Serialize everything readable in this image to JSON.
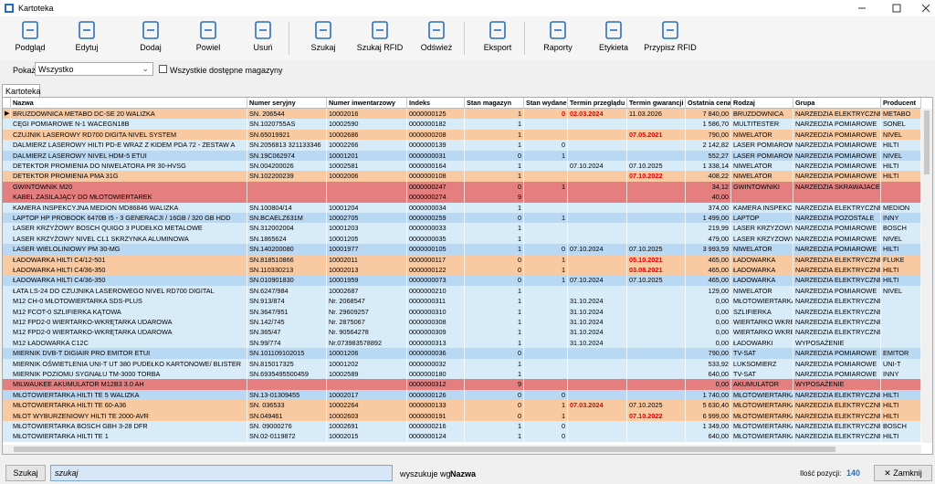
{
  "window_title": "Kartoteka",
  "toolbar": [
    "Podgląd",
    "Edytuj",
    "Dodaj",
    "Powiel",
    "Usuń",
    "Szukaj",
    "Szukaj RFID",
    "Odśwież",
    "Eksport",
    "Raporty",
    "Etykieta",
    "Przypisz RFID"
  ],
  "filter": {
    "label": "Pokaż",
    "value": "Wszystko",
    "checkbox": "Wszystkie dostępne magazyny"
  },
  "tab": "Kartoteka",
  "table": {
    "alert_color": "#e00000",
    "headers": [
      "Nazwa",
      "Numer seryjny",
      "Numer inwentarzowy",
      "Indeks",
      "Stan magazyn",
      "Stan wydane",
      "Termin przeglądu",
      "Termin gwarancji",
      "Ostatnia cena",
      "Rodzaj",
      "Grupa",
      "Producent"
    ],
    "rows": [
      {
        "color": "#f9c9a2",
        "alert": [
          5,
          6
        ],
        "cells": [
          "BRUZDOWNICA METABO DC-SE 20 WALIZKA",
          "SN. 206544",
          "10002016",
          "0000000125",
          1,
          0,
          "02.03.2024",
          "11.03.2026",
          "7 840,00",
          "BRUZDOWNICA",
          "NARZEDZIA ELEKTRYCZNE",
          "METABO"
        ]
      },
      {
        "color": "#d8ebf9",
        "alert": [],
        "cells": [
          "CĘGI POMIAROWE N-1 WACEGN18B",
          "SN.1020755AS",
          "10002590",
          "0000000182",
          1,
          null,
          null,
          null,
          "1 586,70",
          "MULTITESTER",
          "NARZEDZIA POMIAROWE",
          "SONEL"
        ]
      },
      {
        "color": "#f9c9a2",
        "alert": [
          7
        ],
        "cells": [
          "CZUJNIK LASEROWY RD700 DIGITA NIVEL SYSTEM",
          "SN.65019921",
          "10002686",
          "0000000208",
          1,
          null,
          null,
          "07.05.2021",
          "790,00",
          "NIWELATOR",
          "NARZEDZIA POMIAROWE",
          "NIVEL"
        ]
      },
      {
        "color": "#d8ebf9",
        "alert": [],
        "cells": [
          "DALMIERZ LASEROWY HILTI PD-E WRAZ Z KIDEM PDA 72 - ZESTAW A",
          "SN.2056813 321133346",
          "10002266",
          "0000000139",
          1,
          0,
          null,
          null,
          "2 142,82",
          "LASER POMIAROWY",
          "NARZEDZIA POMIAROWE",
          "HILTI"
        ]
      },
      {
        "color": "#b9d8f4",
        "alert": [],
        "cells": [
          "DALMIERZ LASEROWY NIVEL HDM-5 ETUI",
          "SN.19C062974",
          "10001201",
          "0000000031",
          0,
          1,
          null,
          null,
          "552,27",
          "LASER POMIAROWY",
          "NARZEDZIA POMIAROWE",
          "NIVEL"
        ]
      },
      {
        "color": "#d8ebf9",
        "alert": [],
        "cells": [
          "DETEKTOR PROMIENIA DO NIWELATORA PR 30-HVSG",
          "SN.004200026",
          "10002581",
          "0000000164",
          1,
          null,
          "07.10.2024",
          "07.10.2025",
          "1 338,14",
          "NIWELATOR",
          "NARZEDZIA POMIAROWE",
          "HILTI"
        ]
      },
      {
        "color": "#f9c9a2",
        "alert": [
          7
        ],
        "cells": [
          "DETEKTOR PROMIENIA PMA 31G",
          "SN.102200239",
          "10002006",
          "0000000108",
          1,
          null,
          null,
          "07.10.2022",
          "408,22",
          "NIWELATOR",
          "NARZEDZIA POMIAROWE",
          "HILTI"
        ]
      },
      {
        "color": "#e57f7f",
        "alert": [],
        "cells": [
          "GWINTOWNIK M20",
          null,
          null,
          "0000000247",
          0,
          1,
          null,
          null,
          "34,12",
          "GWINTOWNIKI",
          "NARZEDZIA SKRAWAJACE",
          null
        ]
      },
      {
        "color": "#e57f7f",
        "alert": [],
        "cells": [
          "KABEL ZASILAJĄCY DO MŁOTOWIERTAREK",
          null,
          null,
          "0000000274",
          9,
          null,
          null,
          null,
          "40,00",
          null,
          null,
          null
        ]
      },
      {
        "color": "#d8ebf9",
        "alert": [],
        "cells": [
          "KAMERA INSPEKCYJNA MEDION MD86846 WALIZKA",
          "SN.100804/14",
          "10001204",
          "0000000034",
          1,
          null,
          null,
          null,
          "374,00",
          "KAMERA INSPEKCYJ",
          "NARZEDZIA ELEKTRYCZNE",
          "MEDION"
        ]
      },
      {
        "color": "#b9d8f4",
        "alert": [],
        "cells": [
          "LAPTOP HP PROBOOK 6470B I5 - 3 GENERACJI / 16GB / 320 GB HDD",
          "SN.BCAELZ631M",
          "10002705",
          "0000000259",
          0,
          1,
          null,
          null,
          "1 499,00",
          "LAPTOP",
          "NARZEDZIA POZOSTALE",
          "INNY"
        ]
      },
      {
        "color": "#d8ebf9",
        "alert": [],
        "cells": [
          "LASER KRZYŻOWY BOSCH QUIGO 3 PUDEŁKO METALOWE",
          "SN.312002004",
          "10001203",
          "0000000033",
          1,
          null,
          null,
          null,
          "219,99",
          "LASER KRZYZOWY",
          "NARZEDZIA POMIAROWE",
          "BOSCH"
        ]
      },
      {
        "color": "#d8ebf9",
        "alert": [],
        "cells": [
          "LASER KRZYŻOWY NIVEL CL1 SKRZYNKA ALUMINOWA",
          "SN.1865624",
          "10001205",
          "0000000035",
          1,
          null,
          null,
          null,
          "479,00",
          "LASER KRZYZOWY",
          "NARZEDZIA POMIAROWE",
          "NIVEL"
        ]
      },
      {
        "color": "#b9d8f4",
        "alert": [],
        "cells": [
          "LASER WIELOLINIOWY PM 30-MG",
          "SN.140200080",
          "10001977",
          "0000000105",
          1,
          0,
          "07.10.2024",
          "07.10.2025",
          "3 993,59",
          "NIWELATOR",
          "NARZEDZIA POMIAROWE",
          "HILTI"
        ]
      },
      {
        "color": "#f9c9a2",
        "alert": [
          7
        ],
        "cells": [
          "ŁADOWARKA HILTI C4/12-501",
          "SN.818510866",
          "10002011",
          "0000000117",
          0,
          1,
          null,
          "05.10.2021",
          "465,00",
          "ŁADOWARKA",
          "NARZEDZIA ELEKTRYCZNE",
          "FLUKE"
        ]
      },
      {
        "color": "#f9c9a2",
        "alert": [
          7
        ],
        "cells": [
          "ŁADOWARKA HILTI C4/36-350",
          "SN.110330213",
          "10002013",
          "0000000122",
          0,
          1,
          null,
          "03.08.2021",
          "465,00",
          "ŁADOWARKA",
          "NARZEDZIA ELEKTRYCZNE",
          "HILTI"
        ]
      },
      {
        "color": "#b9d8f4",
        "alert": [],
        "cells": [
          "ŁADOWARKA HILTI C4/36-350",
          "SN.010901830",
          "10001959",
          "0000000073",
          0,
          1,
          "07.10.2024",
          "07.10.2025",
          "465,00",
          "ŁADOWARKA",
          "NARZEDZIA ELEKTRYCZNE",
          "HILTI"
        ]
      },
      {
        "color": "#d8ebf9",
        "alert": [],
        "cells": [
          "ŁATA LS-24 DO CZUJNIKA LASEROWEGO NIVEL RD700 DIGITAL",
          "SN.6247/984",
          "10002687",
          "0000000210",
          1,
          null,
          null,
          null,
          "129,00",
          "NIWELATOR",
          "NARZEDZIA POMIAROWE",
          "NIVEL"
        ]
      },
      {
        "color": "#d8ebf9",
        "alert": [],
        "cells": [
          "M12 CH-0 MŁOTOWIERTARKA SDS-PLUS",
          "SN.913/874",
          "Nr. 2068547",
          "0000000311",
          1,
          null,
          "31.10.2024",
          null,
          "0,00",
          "MŁOTOWIERTARKA",
          "NARZEDZIA ELEKTRYCZNE",
          null
        ]
      },
      {
        "color": "#d8ebf9",
        "alert": [],
        "cells": [
          "M12 FCOT-0 SZLIFIERKA KĄTOWA",
          "SN.3647/951",
          "Nr. 29609257",
          "0000000310",
          1,
          null,
          "31.10.2024",
          null,
          "0,00",
          "SZLIFIERKA",
          "NARZEDZIA ELEKTRYCZNE",
          null
        ]
      },
      {
        "color": "#d8ebf9",
        "alert": [],
        "cells": [
          "M12 FPD2-0 WIERTARKO-WKRĘTARKA UDAROWA",
          "SN.142/745",
          "Nr. 2875067",
          "0000000308",
          1,
          null,
          "31.10.2024",
          null,
          "0,00",
          "WIERTARKO WKRĘ",
          "NARZEDZIA ELEKTRYCZNE",
          null
        ]
      },
      {
        "color": "#d8ebf9",
        "alert": [],
        "cells": [
          "M12 FPD2-0 WIERTARKO-WKRĘTARKA UDAROWA",
          "SN.365/47",
          "Nr. 90564278",
          "0000000309",
          1,
          null,
          "31.10.2024",
          null,
          "0,00",
          "WIERTARKO WKRĘ",
          "NARZEDZIA ELEKTRYCZNE",
          null
        ]
      },
      {
        "color": "#d8ebf9",
        "alert": [],
        "cells": [
          "M12 ŁADOWARKA C12C",
          "SN.99/774",
          "Nr.073983578892",
          "0000000313",
          1,
          null,
          "31.10.2024",
          null,
          "0,00",
          "ŁADOWARKI",
          "WYPOSAŻENIE",
          null
        ]
      },
      {
        "color": "#b9d8f4",
        "alert": [],
        "cells": [
          "MIERNIK DVB-T DIGIAIR PRO EMITOR ETUI",
          "SN.101109102015",
          "10001206",
          "0000000036",
          0,
          null,
          null,
          null,
          "790,00",
          "TV-SAT",
          "NARZEDZIA POMIAROWE",
          "EMITOR"
        ]
      },
      {
        "color": "#d8ebf9",
        "alert": [],
        "cells": [
          "MIERNIK OŚWIETLENIA UNI-T UT 380 PUDEŁKO KARTONOWE/ BLISTER",
          "SN.815017325",
          "10001202",
          "0000000032",
          1,
          null,
          null,
          null,
          "533,92",
          "LUKSOMIERZ",
          "NARZEDZIA POMIAROWE",
          "UNI-T"
        ]
      },
      {
        "color": "#d8ebf9",
        "alert": [],
        "cells": [
          "MIERNIK POZIOMU SYGNAŁU TM-3000 TORBA",
          "SN.6935495500459",
          "10002589",
          "0000000180",
          1,
          null,
          null,
          null,
          "640,00",
          "TV-SAT",
          "NARZEDZIA POMIAROWE",
          "INNY"
        ]
      },
      {
        "color": "#e57f7f",
        "alert": [],
        "cells": [
          "MILWAUKEE AKUMULATOR M12B3 3.0 AH",
          null,
          null,
          "0000000312",
          9,
          null,
          null,
          null,
          "0,00",
          "AKUMULATOR",
          "WYPOSAŻENIE",
          null
        ]
      },
      {
        "color": "#b9d8f4",
        "alert": [],
        "cells": [
          "MŁOTOWIERTARKA HILTI TE 5 WALIZKA",
          "SN.13-01309455",
          "10002017",
          "0000000126",
          0,
          0,
          null,
          null,
          "1 740,00",
          "MŁOTOWIERTARKA",
          "NARZEDZIA ELEKTRYCZNE",
          "HILTI"
        ]
      },
      {
        "color": "#f9c9a2",
        "alert": [
          6
        ],
        "cells": [
          "MŁOTOWIERTARKA HILTI TE 60-A36",
          "SN. 036533",
          "10002264",
          "0000000133",
          0,
          1,
          "07.03.2024",
          "07.10.2025",
          "5 630,40",
          "MŁOTOWIERTARKA",
          "NARZEDZIA ELEKTRYCZNE",
          "HILTI"
        ]
      },
      {
        "color": "#f9c9a2",
        "alert": [
          7
        ],
        "cells": [
          "MŁOT WYBURZENIOWY HILTI TE 2000-AVR",
          "SN.049461",
          "10002603",
          "0000000191",
          0,
          1,
          null,
          "07.10.2022",
          "6 999,00",
          "MŁOTOWIERTARKA",
          "NARZEDZIA ELEKTRYCZNE",
          "HILTI"
        ]
      },
      {
        "color": "#d8ebf9",
        "alert": [],
        "cells": [
          "MŁOTOWIERTARKA BOSCH GBH 3-28 DFR",
          "SN. 09000276",
          "10002691",
          "0000000216",
          1,
          0,
          null,
          null,
          "1 349,00",
          "MŁOTOWIERTARKA",
          "NARZEDZIA ELEKTRYCZNE",
          "BOSCH"
        ]
      },
      {
        "color": "#d8ebf9",
        "alert": [],
        "cells": [
          "MŁOTOWIERTARKA HILTI TE 1",
          "SN.02-0119872",
          "10002015",
          "0000000124",
          1,
          0,
          null,
          null,
          "640,00",
          "MŁOTOWIERTARKA",
          "NARZEDZIA ELEKTRYCZNE",
          "HILTI"
        ]
      }
    ]
  },
  "footer": {
    "button": "Szukaj",
    "search": "szukaj",
    "search_by_label": "wyszukuje wg:",
    "search_by": "Nazwa",
    "count_label": "Ilość pozycji:",
    "count": 140,
    "close": "Zamknij"
  }
}
